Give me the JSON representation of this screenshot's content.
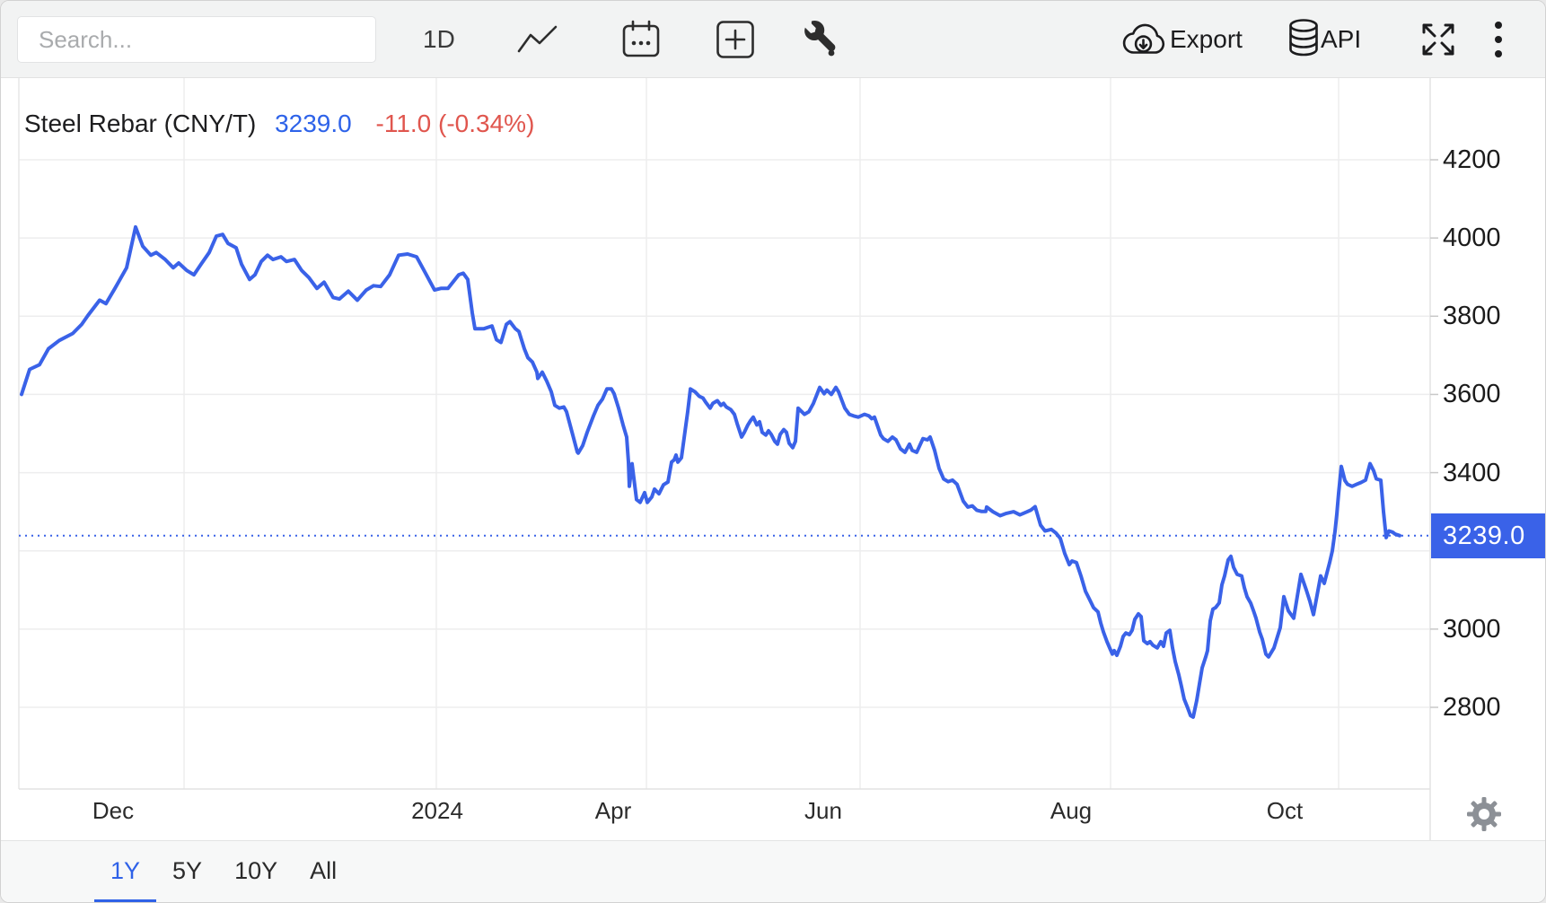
{
  "toolbar": {
    "search_placeholder": "Search...",
    "interval_label": "1D",
    "export_label": "Export",
    "api_label": "API"
  },
  "header": {
    "instrument": "Steel Rebar (CNY/T)",
    "price": "3239.0",
    "change": "-11.0 (-0.34%)"
  },
  "axis_price_badge": "3239.0",
  "colors": {
    "accent_blue": "#3a62e8",
    "price_text_blue": "#2e63e9",
    "change_red": "#e0564e",
    "gridline": "#ededee"
  },
  "footer": {
    "tabs": [
      {
        "label": "1Y",
        "active": true
      },
      {
        "label": "5Y",
        "active": false
      },
      {
        "label": "10Y",
        "active": false
      },
      {
        "label": "All",
        "active": false
      }
    ]
  },
  "chart_data": {
    "type": "line",
    "title": "Steel Rebar (CNY/T)",
    "unit": "CNY/T",
    "latest": 3239.0,
    "change": -11.0,
    "change_pct": -0.34,
    "range": "1Y",
    "grid": true,
    "legend_position": "none",
    "current_price_line": 3239.0,
    "x_tick_labels": [
      "Dec",
      "2024",
      "Apr",
      "Jun",
      "Aug",
      "Oct"
    ],
    "y_ticks": [
      "4200",
      "4000",
      "3800",
      "3600",
      "3400",
      "3000",
      "2800"
    ],
    "y_gridlines": [
      4200,
      4000,
      3800,
      3600,
      3400,
      3200,
      3000,
      2800
    ],
    "ylim": [
      2591,
      4409
    ],
    "x_domain": [
      0,
      1538
    ],
    "series": [
      {
        "name": "Steel Rebar",
        "color": "#3a62e8",
        "points": [
          [
            3,
            3600
          ],
          [
            12,
            3664
          ],
          [
            23,
            3676
          ],
          [
            33,
            3717
          ],
          [
            45,
            3738
          ],
          [
            60,
            3756
          ],
          [
            70,
            3779
          ],
          [
            77,
            3802
          ],
          [
            90,
            3841
          ],
          [
            97,
            3832
          ],
          [
            107,
            3871
          ],
          [
            120,
            3924
          ],
          [
            130,
            4028
          ],
          [
            138,
            3979
          ],
          [
            147,
            3956
          ],
          [
            153,
            3963
          ],
          [
            163,
            3945
          ],
          [
            172,
            3924
          ],
          [
            178,
            3936
          ],
          [
            187,
            3917
          ],
          [
            195,
            3906
          ],
          [
            203,
            3933
          ],
          [
            212,
            3963
          ],
          [
            220,
            4005
          ],
          [
            227,
            4009
          ],
          [
            233,
            3986
          ],
          [
            242,
            3975
          ],
          [
            248,
            3933
          ],
          [
            257,
            3894
          ],
          [
            263,
            3906
          ],
          [
            270,
            3940
          ],
          [
            277,
            3956
          ],
          [
            283,
            3945
          ],
          [
            292,
            3952
          ],
          [
            298,
            3940
          ],
          [
            307,
            3945
          ],
          [
            315,
            3917
          ],
          [
            323,
            3899
          ],
          [
            332,
            3871
          ],
          [
            340,
            3887
          ],
          [
            350,
            3848
          ],
          [
            357,
            3844
          ],
          [
            367,
            3864
          ],
          [
            377,
            3841
          ],
          [
            387,
            3867
          ],
          [
            395,
            3878
          ],
          [
            403,
            3876
          ],
          [
            413,
            3906
          ],
          [
            423,
            3956
          ],
          [
            433,
            3959
          ],
          [
            443,
            3952
          ],
          [
            453,
            3910
          ],
          [
            463,
            3867
          ],
          [
            470,
            3871
          ],
          [
            478,
            3871
          ],
          [
            490,
            3906
          ],
          [
            495,
            3910
          ],
          [
            500,
            3894
          ],
          [
            505,
            3809
          ],
          [
            508,
            3768
          ],
          [
            518,
            3768
          ],
          [
            523,
            3772
          ],
          [
            527,
            3775
          ],
          [
            532,
            3740
          ],
          [
            537,
            3733
          ],
          [
            543,
            3779
          ],
          [
            547,
            3786
          ],
          [
            553,
            3768
          ],
          [
            557,
            3761
          ],
          [
            563,
            3717
          ],
          [
            567,
            3694
          ],
          [
            572,
            3683
          ],
          [
            577,
            3657
          ],
          [
            578,
            3641
          ],
          [
            583,
            3657
          ],
          [
            588,
            3634
          ],
          [
            593,
            3607
          ],
          [
            597,
            3572
          ],
          [
            602,
            3565
          ],
          [
            607,
            3568
          ],
          [
            610,
            3556
          ],
          [
            617,
            3496
          ],
          [
            622,
            3453
          ],
          [
            623,
            3450
          ],
          [
            628,
            3469
          ],
          [
            633,
            3503
          ],
          [
            640,
            3545
          ],
          [
            645,
            3572
          ],
          [
            650,
            3588
          ],
          [
            655,
            3614
          ],
          [
            660,
            3614
          ],
          [
            663,
            3602
          ],
          [
            668,
            3565
          ],
          [
            673,
            3522
          ],
          [
            677,
            3491
          ],
          [
            679,
            3427
          ],
          [
            680,
            3365
          ],
          [
            683,
            3423
          ],
          [
            688,
            3331
          ],
          [
            692,
            3324
          ],
          [
            697,
            3349
          ],
          [
            700,
            3324
          ],
          [
            705,
            3338
          ],
          [
            708,
            3358
          ],
          [
            713,
            3346
          ],
          [
            718,
            3369
          ],
          [
            723,
            3376
          ],
          [
            727,
            3427
          ],
          [
            730,
            3433
          ],
          [
            732,
            3445
          ],
          [
            734,
            3427
          ],
          [
            738,
            3438
          ],
          [
            745,
            3556
          ],
          [
            748,
            3614
          ],
          [
            753,
            3607
          ],
          [
            758,
            3595
          ],
          [
            762,
            3591
          ],
          [
            765,
            3580
          ],
          [
            770,
            3565
          ],
          [
            773,
            3577
          ],
          [
            778,
            3584
          ],
          [
            782,
            3572
          ],
          [
            785,
            3577
          ],
          [
            788,
            3568
          ],
          [
            793,
            3561
          ],
          [
            797,
            3549
          ],
          [
            800,
            3526
          ],
          [
            805,
            3491
          ],
          [
            808,
            3503
          ],
          [
            812,
            3522
          ],
          [
            815,
            3533
          ],
          [
            818,
            3542
          ],
          [
            822,
            3522
          ],
          [
            825,
            3530
          ],
          [
            828,
            3503
          ],
          [
            832,
            3496
          ],
          [
            835,
            3507
          ],
          [
            838,
            3498
          ],
          [
            842,
            3480
          ],
          [
            845,
            3473
          ],
          [
            848,
            3498
          ],
          [
            852,
            3510
          ],
          [
            855,
            3503
          ],
          [
            858,
            3475
          ],
          [
            862,
            3464
          ],
          [
            865,
            3480
          ],
          [
            868,
            3565
          ],
          [
            875,
            3549
          ],
          [
            880,
            3556
          ],
          [
            885,
            3577
          ],
          [
            892,
            3618
          ],
          [
            897,
            3602
          ],
          [
            900,
            3611
          ],
          [
            905,
            3600
          ],
          [
            910,
            3618
          ],
          [
            913,
            3607
          ],
          [
            920,
            3565
          ],
          [
            925,
            3549
          ],
          [
            930,
            3545
          ],
          [
            935,
            3542
          ],
          [
            942,
            3549
          ],
          [
            947,
            3545
          ],
          [
            950,
            3538
          ],
          [
            953,
            3542
          ],
          [
            960,
            3496
          ],
          [
            963,
            3487
          ],
          [
            968,
            3480
          ],
          [
            973,
            3491
          ],
          [
            977,
            3484
          ],
          [
            982,
            3461
          ],
          [
            987,
            3452
          ],
          [
            992,
            3473
          ],
          [
            995,
            3457
          ],
          [
            1000,
            3452
          ],
          [
            1007,
            3487
          ],
          [
            1012,
            3484
          ],
          [
            1015,
            3491
          ],
          [
            1020,
            3457
          ],
          [
            1025,
            3411
          ],
          [
            1030,
            3384
          ],
          [
            1035,
            3377
          ],
          [
            1040,
            3381
          ],
          [
            1045,
            3370
          ],
          [
            1052,
            3327
          ],
          [
            1057,
            3312
          ],
          [
            1062,
            3315
          ],
          [
            1067,
            3304
          ],
          [
            1072,
            3301
          ],
          [
            1077,
            3301
          ],
          [
            1078,
            3312
          ],
          [
            1085,
            3300
          ],
          [
            1093,
            3290
          ],
          [
            1100,
            3296
          ],
          [
            1108,
            3300
          ],
          [
            1115,
            3292
          ],
          [
            1120,
            3297
          ],
          [
            1127,
            3304
          ],
          [
            1132,
            3313
          ],
          [
            1138,
            3266
          ],
          [
            1143,
            3251
          ],
          [
            1150,
            3255
          ],
          [
            1155,
            3246
          ],
          [
            1160,
            3232
          ],
          [
            1165,
            3193
          ],
          [
            1170,
            3165
          ],
          [
            1173,
            3174
          ],
          [
            1178,
            3170
          ],
          [
            1183,
            3136
          ],
          [
            1188,
            3097
          ],
          [
            1193,
            3074
          ],
          [
            1197,
            3055
          ],
          [
            1202,
            3044
          ],
          [
            1205,
            3016
          ],
          [
            1208,
            2993
          ],
          [
            1212,
            2968
          ],
          [
            1215,
            2952
          ],
          [
            1218,
            2936
          ],
          [
            1220,
            2945
          ],
          [
            1223,
            2933
          ],
          [
            1227,
            2956
          ],
          [
            1230,
            2981
          ],
          [
            1233,
            2990
          ],
          [
            1237,
            2986
          ],
          [
            1240,
            2997
          ],
          [
            1243,
            3025
          ],
          [
            1247,
            3039
          ],
          [
            1250,
            3032
          ],
          [
            1253,
            2970
          ],
          [
            1257,
            2963
          ],
          [
            1260,
            2968
          ],
          [
            1263,
            2959
          ],
          [
            1268,
            2952
          ],
          [
            1272,
            2968
          ],
          [
            1275,
            2956
          ],
          [
            1278,
            2990
          ],
          [
            1282,
            2997
          ],
          [
            1285,
            2952
          ],
          [
            1288,
            2917
          ],
          [
            1292,
            2883
          ],
          [
            1295,
            2853
          ],
          [
            1298,
            2821
          ],
          [
            1302,
            2798
          ],
          [
            1305,
            2779
          ],
          [
            1308,
            2775
          ],
          [
            1312,
            2818
          ],
          [
            1315,
            2860
          ],
          [
            1318,
            2901
          ],
          [
            1322,
            2929
          ],
          [
            1324,
            2945
          ],
          [
            1327,
            3021
          ],
          [
            1330,
            3051
          ],
          [
            1333,
            3055
          ],
          [
            1337,
            3067
          ],
          [
            1340,
            3113
          ],
          [
            1343,
            3136
          ],
          [
            1347,
            3177
          ],
          [
            1350,
            3186
          ],
          [
            1353,
            3158
          ],
          [
            1357,
            3140
          ],
          [
            1362,
            3136
          ],
          [
            1365,
            3106
          ],
          [
            1368,
            3083
          ],
          [
            1372,
            3067
          ],
          [
            1375,
            3048
          ],
          [
            1378,
            3028
          ],
          [
            1382,
            2993
          ],
          [
            1385,
            2974
          ],
          [
            1389,
            2936
          ],
          [
            1392,
            2929
          ],
          [
            1398,
            2952
          ],
          [
            1405,
            3004
          ],
          [
            1409,
            3083
          ],
          [
            1414,
            3047
          ],
          [
            1420,
            3028
          ],
          [
            1428,
            3140
          ],
          [
            1434,
            3100
          ],
          [
            1438,
            3071
          ],
          [
            1442,
            3037
          ],
          [
            1450,
            3136
          ],
          [
            1454,
            3117
          ],
          [
            1460,
            3170
          ],
          [
            1463,
            3200
          ],
          [
            1466,
            3250
          ],
          [
            1468,
            3294
          ],
          [
            1470,
            3347
          ],
          [
            1473,
            3416
          ],
          [
            1477,
            3380
          ],
          [
            1480,
            3370
          ],
          [
            1485,
            3365
          ],
          [
            1490,
            3370
          ],
          [
            1495,
            3375
          ],
          [
            1500,
            3381
          ],
          [
            1505,
            3423
          ],
          [
            1509,
            3405
          ],
          [
            1512,
            3384
          ],
          [
            1517,
            3381
          ],
          [
            1520,
            3300
          ],
          [
            1523,
            3234
          ],
          [
            1526,
            3251
          ],
          [
            1530,
            3248
          ],
          [
            1533,
            3243
          ],
          [
            1538,
            3239
          ]
        ]
      }
    ]
  }
}
